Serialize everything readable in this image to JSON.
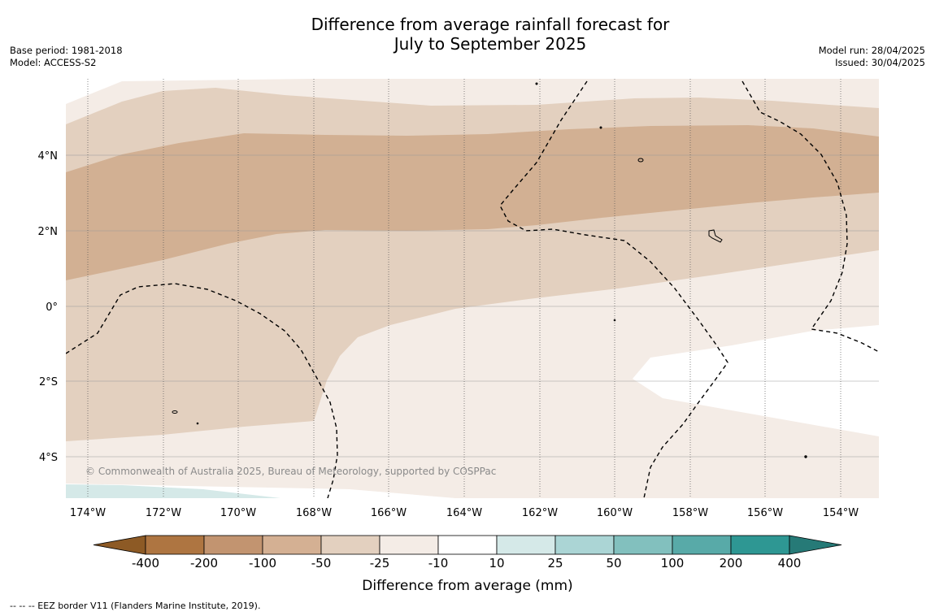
{
  "title": {
    "line1": "Difference from average rainfall forecast for",
    "line2": "July to September 2025"
  },
  "meta_left": {
    "base_period": "Base period: 1981-2018",
    "model": "Model: ACCESS-S2"
  },
  "meta_right": {
    "model_run": "Model run: 28/04/2025",
    "issued": "Issued: 30/04/2025"
  },
  "map": {
    "lat_labels": [
      "4°N",
      "2°N",
      "0°",
      "2°S",
      "4°S"
    ],
    "lon_labels": [
      "174°W",
      "172°W",
      "170°W",
      "168°W",
      "166°W",
      "164°W",
      "162°W",
      "160°W",
      "158°W",
      "156°W",
      "154°W"
    ],
    "copyright": "© Commonwealth of Australia 2025, Bureau of Meteorology, supported by COSPPac",
    "colors": {
      "m25_m10": "#f4ece6",
      "m50_m25": "#e3d0bf",
      "m100_m50": "#d2b093",
      "p10_p25": "#d5e9e8",
      "neutral": "#ffffff"
    }
  },
  "colorbar": {
    "ticks": [
      "-400",
      "-200",
      "-100",
      "-50",
      "-25",
      "-10",
      "10",
      "25",
      "50",
      "100",
      "200",
      "400"
    ],
    "colors": [
      "#8d5a25",
      "#ae7541",
      "#c29470",
      "#d4b093",
      "#e3d0bf",
      "#f4ece6",
      "#ffffff",
      "#d5e9e8",
      "#abd5d5",
      "#82c0be",
      "#58aaa8",
      "#2e9793",
      "#267a77"
    ],
    "label": "Difference from average (mm)"
  },
  "footer": "--  --  -- EEZ border V11 (Flanders Marine Institute, 2019)."
}
